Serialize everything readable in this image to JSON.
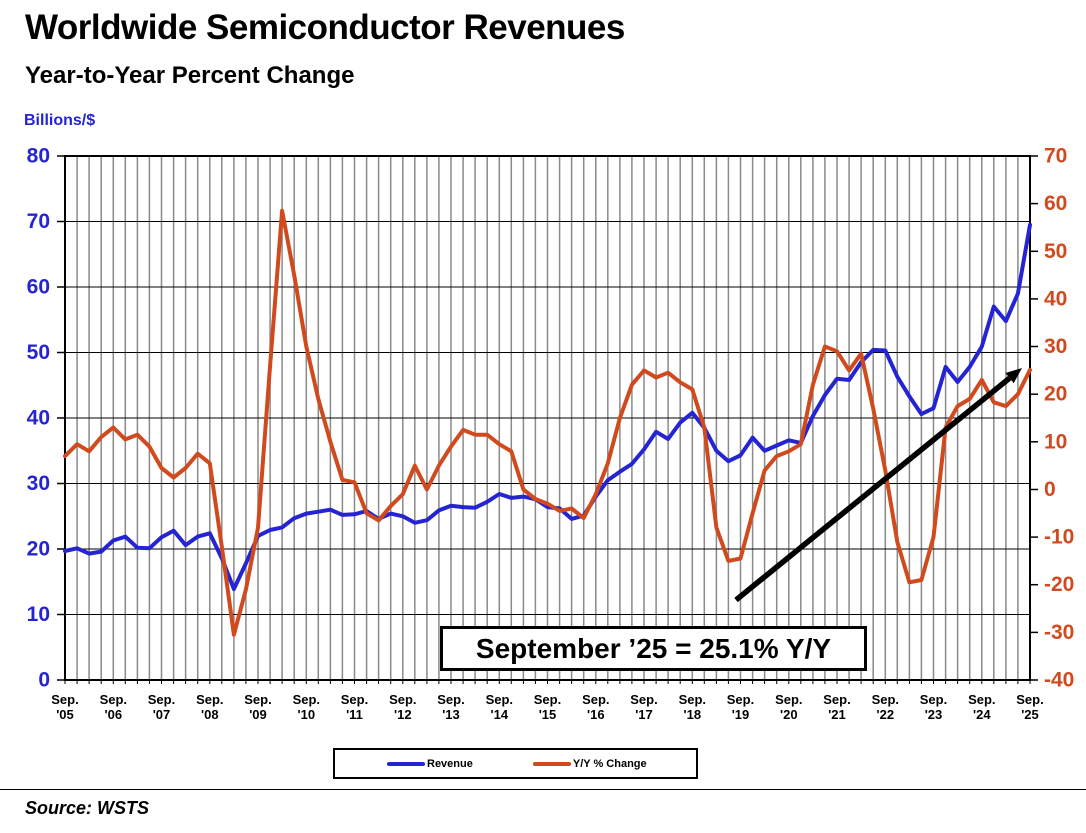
{
  "header": {
    "title": "Worldwide Semiconductor Revenues",
    "subtitle": "Year-to-Year Percent Change",
    "unit_label": "Billions/$",
    "source": "Source: WSTS"
  },
  "annotation": {
    "text": "September ’25 = 25.1% Y/Y"
  },
  "legend": {
    "items": [
      {
        "label": "Revenue",
        "color": "#2524d2"
      },
      {
        "label": "Y/Y % Change",
        "color": "#d14a1e"
      }
    ]
  },
  "chart_data": {
    "type": "line",
    "title": "Worldwide Semiconductor Revenues",
    "subtitle": "Year-to-Year Percent Change",
    "grid": "on",
    "points_per_year": 4,
    "x_month_label": "Sep.",
    "x_year_labels": [
      "'05",
      "'06",
      "'07",
      "'08",
      "'09",
      "'10",
      "'11",
      "'12",
      "'13",
      "'14",
      "'15",
      "'16",
      "'17",
      "'18",
      "'19",
      "'20",
      "'21",
      "'22",
      "'23",
      "'24",
      "'25"
    ],
    "left_axis": {
      "label": "Billions/$",
      "min": 0,
      "max": 80,
      "step": 10,
      "color": "#2524d2"
    },
    "right_axis": {
      "label": "Y/Y % Change",
      "min": -40,
      "max": 70,
      "step": 10,
      "color": "#d14a1e"
    },
    "series": [
      {
        "name": "Revenue",
        "axis": "left",
        "color": "#2524d2",
        "values": [
          19.7,
          20.1,
          19.3,
          19.6,
          21.3,
          21.9,
          20.2,
          20.1,
          21.8,
          22.8,
          20.6,
          21.9,
          22.4,
          18.6,
          13.9,
          17.8,
          22.0,
          22.9,
          23.3,
          24.7,
          25.4,
          25.7,
          26.0,
          25.2,
          25.3,
          25.8,
          24.6,
          25.4,
          25.0,
          24.0,
          24.4,
          25.9,
          26.6,
          26.4,
          26.3,
          27.2,
          28.4,
          27.8,
          28.0,
          27.6,
          26.4,
          26.2,
          24.6,
          25.1,
          28.0,
          30.5,
          31.8,
          33.0,
          35.2,
          37.9,
          36.8,
          39.3,
          40.8,
          38.5,
          35.0,
          33.4,
          34.3,
          37.0,
          35.0,
          35.8,
          36.6,
          36.2,
          40.3,
          43.5,
          46.0,
          45.8,
          48.5,
          50.4,
          50.3,
          46.3,
          43.3,
          40.6,
          41.5,
          47.8,
          45.5,
          47.8,
          50.9,
          57.0,
          54.8,
          59.0,
          69.5
        ]
      },
      {
        "name": "Y/Y % Change",
        "axis": "right",
        "color": "#d14a1e",
        "values": [
          7,
          9.5,
          8,
          11,
          13,
          10.5,
          11.5,
          9,
          4.5,
          2.5,
          4.5,
          7.5,
          5.5,
          -12,
          -30.5,
          -21,
          -8,
          26,
          58.5,
          45,
          30,
          19,
          10,
          2,
          1.5,
          -5,
          -6.5,
          -3.5,
          -1,
          5,
          0,
          5,
          9,
          12.5,
          11.5,
          11.5,
          9.5,
          8,
          0,
          -2,
          -3,
          -4.5,
          -4,
          -6,
          -1,
          5.5,
          15,
          22,
          25,
          23.5,
          24.5,
          22.5,
          21,
          13,
          -8,
          -15,
          -14.5,
          -5,
          4,
          7,
          8,
          9.5,
          22,
          30,
          29,
          25,
          28.5,
          17,
          4,
          -11,
          -19.5,
          -19,
          -10,
          13,
          17.5,
          19,
          23,
          18.3,
          17.5,
          20,
          25.1
        ]
      }
    ],
    "callout": "September '25 = 25.1% Y/Y",
    "final_point": {
      "date": "September '25",
      "yoy_percent": 25.1,
      "revenue_billions": 69.5
    }
  }
}
